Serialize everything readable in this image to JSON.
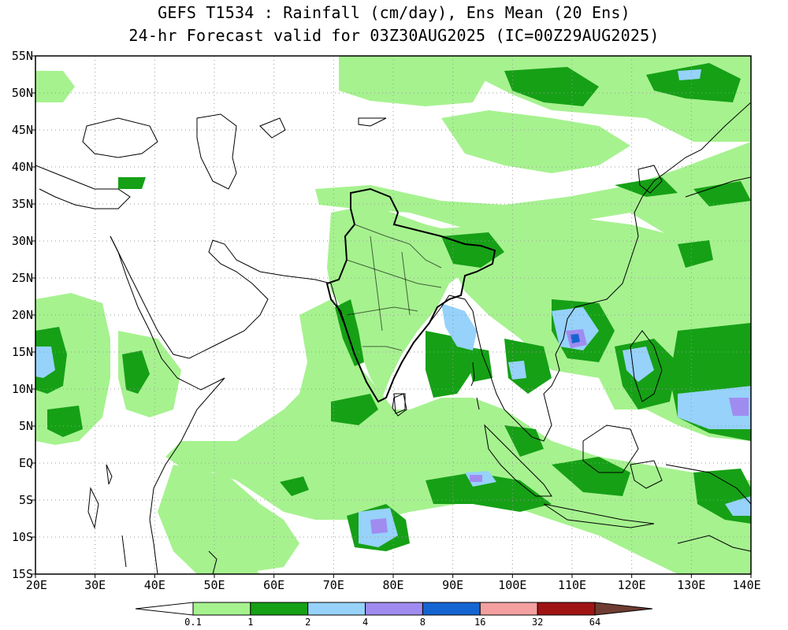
{
  "title": {
    "line1": "GEFS T1534 : Rainfall (cm/day), Ens Mean (20 Ens)",
    "line2": "24-hr Forecast valid for 03Z30AUG2025 (IC=00Z29AUG2025)"
  },
  "axes": {
    "lat_labels": [
      "55N",
      "50N",
      "45N",
      "40N",
      "35N",
      "30N",
      "25N",
      "20N",
      "15N",
      "10N",
      "5N",
      "EQ",
      "5S",
      "10S",
      "15S"
    ],
    "lat_values": [
      55,
      50,
      45,
      40,
      35,
      30,
      25,
      20,
      15,
      10,
      5,
      0,
      -5,
      -10,
      -15
    ],
    "lon_labels": [
      "20E",
      "30E",
      "40E",
      "50E",
      "60E",
      "70E",
      "80E",
      "90E",
      "100E",
      "110E",
      "120E",
      "130E",
      "140E"
    ],
    "lon_values": [
      20,
      30,
      40,
      50,
      60,
      70,
      80,
      90,
      100,
      110,
      120,
      130,
      140
    ],
    "lon_range": [
      20,
      140
    ],
    "lat_range": [
      -15,
      55
    ],
    "grid": "dotted"
  },
  "colorbar": {
    "labels": [
      "0.1",
      "1",
      "2",
      "4",
      "8",
      "16",
      "32",
      "64"
    ],
    "colors": [
      "#ffffff",
      "#a6f28f",
      "#16a016",
      "#96d2fa",
      "#a08cf0",
      "#1464d2",
      "#f4a0a0",
      "#a01414",
      "#6e3c32"
    ]
  },
  "map_colors": {
    "ocean": "#ffffff",
    "coast": "#000000",
    "light_green": "#a6f28f",
    "dark_green": "#16a016",
    "light_blue": "#96d2fa",
    "purple": "#a08cf0",
    "blue": "#1464d2",
    "pink": "#f4a0a0"
  }
}
